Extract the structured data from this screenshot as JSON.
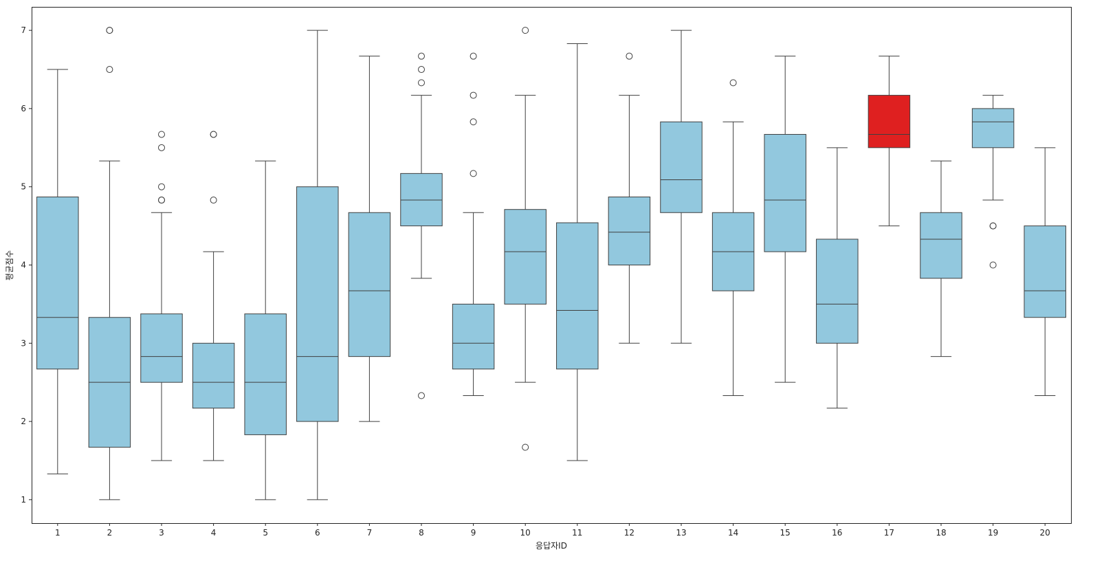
{
  "chart_data": {
    "type": "box",
    "xlabel": "응답자ID",
    "ylabel": "평균점수",
    "ylim": [
      0.7,
      7.3
    ],
    "yticks": [
      1,
      2,
      3,
      4,
      5,
      6,
      7
    ],
    "grid": false,
    "colors": {
      "default": "#92c8de",
      "highlight": "#df2020",
      "line": "#3f3f3f"
    },
    "categories": [
      "1",
      "2",
      "3",
      "4",
      "5",
      "6",
      "7",
      "8",
      "9",
      "10",
      "11",
      "12",
      "13",
      "14",
      "15",
      "16",
      "17",
      "18",
      "19",
      "20"
    ],
    "boxes": [
      {
        "low": 1.33,
        "q1": 2.67,
        "median": 3.33,
        "q3": 4.87,
        "high": 6.5,
        "outliers": []
      },
      {
        "low": 1.0,
        "q1": 1.67,
        "median": 2.5,
        "q3": 3.33,
        "high": 5.33,
        "outliers": [
          7.0,
          7.0,
          6.5
        ]
      },
      {
        "low": 1.5,
        "q1": 2.5,
        "median": 2.83,
        "q3": 3.375,
        "high": 4.67,
        "outliers": [
          5.67,
          5.5,
          5.0,
          4.83,
          4.83
        ]
      },
      {
        "low": 1.5,
        "q1": 2.17,
        "median": 2.5,
        "q3": 3.0,
        "high": 4.17,
        "outliers": [
          5.67,
          5.67,
          4.83
        ]
      },
      {
        "low": 1.0,
        "q1": 1.83,
        "median": 2.5,
        "q3": 3.375,
        "high": 5.33,
        "outliers": []
      },
      {
        "low": 1.0,
        "q1": 2.0,
        "median": 2.83,
        "q3": 5.0,
        "high": 7.0,
        "outliers": []
      },
      {
        "low": 2.0,
        "q1": 2.83,
        "median": 3.67,
        "q3": 4.67,
        "high": 6.67,
        "outliers": []
      },
      {
        "low": 3.83,
        "q1": 4.5,
        "median": 4.83,
        "q3": 5.17,
        "high": 6.17,
        "outliers": [
          6.67,
          6.5,
          6.33,
          2.33
        ]
      },
      {
        "low": 2.33,
        "q1": 2.67,
        "median": 3.0,
        "q3": 3.5,
        "high": 4.67,
        "outliers": [
          6.67,
          6.17,
          5.83,
          5.17
        ]
      },
      {
        "low": 2.5,
        "q1": 3.5,
        "median": 4.17,
        "q3": 4.71,
        "high": 6.17,
        "outliers": [
          7.0,
          1.67
        ]
      },
      {
        "low": 1.5,
        "q1": 2.67,
        "median": 3.42,
        "q3": 4.54,
        "high": 6.83,
        "outliers": []
      },
      {
        "low": 3.0,
        "q1": 4.0,
        "median": 4.42,
        "q3": 4.87,
        "high": 6.17,
        "outliers": [
          6.67
        ]
      },
      {
        "low": 3.0,
        "q1": 4.67,
        "median": 5.09,
        "q3": 5.83,
        "high": 7.0,
        "outliers": []
      },
      {
        "low": 2.33,
        "q1": 3.67,
        "median": 4.17,
        "q3": 4.67,
        "high": 5.83,
        "outliers": [
          6.33
        ]
      },
      {
        "low": 2.5,
        "q1": 4.17,
        "median": 4.83,
        "q3": 5.67,
        "high": 6.67,
        "outliers": []
      },
      {
        "low": 2.17,
        "q1": 3.0,
        "median": 3.5,
        "q3": 4.33,
        "high": 5.5,
        "outliers": []
      },
      {
        "low": 4.5,
        "q1": 5.5,
        "median": 5.67,
        "q3": 6.17,
        "high": 6.67,
        "outliers": [],
        "highlight": true
      },
      {
        "low": 2.83,
        "q1": 3.83,
        "median": 4.33,
        "q3": 4.67,
        "high": 5.33,
        "outliers": []
      },
      {
        "low": 4.83,
        "q1": 5.5,
        "median": 5.83,
        "q3": 6.0,
        "high": 6.17,
        "outliers": [
          4.5,
          4.5,
          4.0
        ]
      },
      {
        "low": 2.33,
        "q1": 3.33,
        "median": 3.67,
        "q3": 4.5,
        "high": 5.5,
        "outliers": []
      }
    ]
  }
}
